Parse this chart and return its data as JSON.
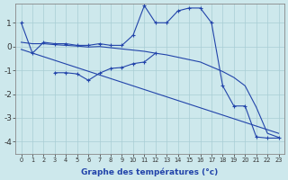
{
  "xlabel": "Graphe des températures (°c)",
  "bg_color": "#cde8ec",
  "grid_color": "#a8cdd4",
  "line_color": "#2244aa",
  "line1_x": [
    0,
    1,
    2,
    3,
    4,
    5,
    6,
    7,
    8,
    9,
    10,
    11,
    12,
    13,
    14,
    15,
    16,
    17,
    18,
    19,
    20,
    21,
    22,
    23
  ],
  "line1_y": [
    1.0,
    -0.28,
    0.18,
    0.12,
    0.12,
    0.05,
    0.05,
    0.12,
    0.05,
    0.05,
    0.48,
    1.72,
    1.0,
    1.0,
    1.5,
    1.62,
    1.62,
    1.0,
    -1.65,
    -2.5,
    -2.5,
    -3.8,
    -3.85,
    -3.85
  ],
  "line2_x": [
    0,
    1,
    2,
    3,
    4,
    5,
    6,
    7,
    8,
    9,
    10,
    11,
    12,
    13,
    14,
    15,
    16,
    17,
    18,
    19,
    20,
    21,
    22,
    23
  ],
  "line2_y": [
    0.18,
    0.12,
    0.12,
    0.08,
    0.05,
    0.02,
    -0.02,
    0.0,
    -0.05,
    -0.1,
    -0.15,
    -0.2,
    -0.28,
    -0.35,
    -0.45,
    -0.55,
    -0.65,
    -0.85,
    -1.05,
    -1.3,
    -1.65,
    -2.55,
    -3.65,
    -3.82
  ],
  "line3_x": [
    0,
    23
  ],
  "line3_y": [
    -0.12,
    -3.65
  ],
  "line4_x": [
    3,
    4,
    5,
    6,
    7,
    8,
    9,
    10,
    11,
    12
  ],
  "line4_y": [
    -1.1,
    -1.1,
    -1.15,
    -1.42,
    -1.12,
    -0.92,
    -0.88,
    -0.72,
    -0.65,
    -0.28
  ],
  "ylim": [
    -4.5,
    1.8
  ],
  "xlim": [
    -0.5,
    23.5
  ],
  "yticks": [
    -4,
    -3,
    -2,
    -1,
    0,
    1
  ],
  "xticks": [
    0,
    1,
    2,
    3,
    4,
    5,
    6,
    7,
    8,
    9,
    10,
    11,
    12,
    13,
    14,
    15,
    16,
    17,
    18,
    19,
    20,
    21,
    22,
    23
  ]
}
